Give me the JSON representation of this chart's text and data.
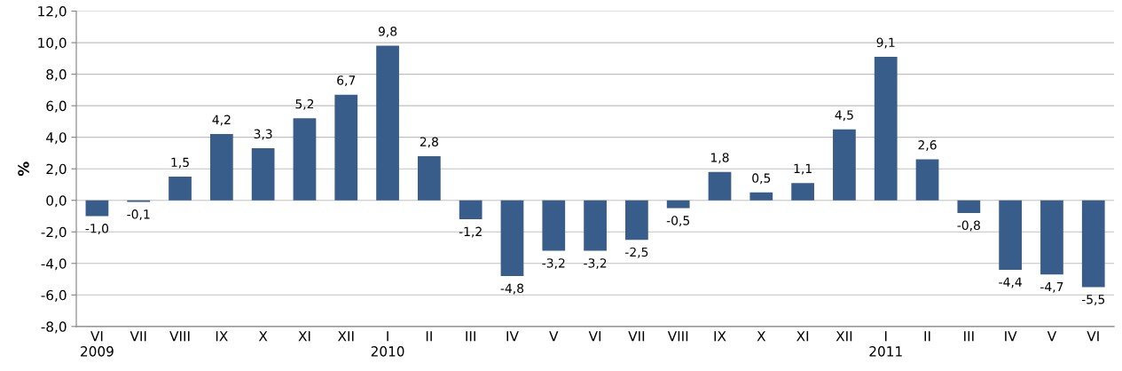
{
  "chart_data": {
    "type": "bar",
    "ylabel": "%",
    "categories": [
      "VI\n2009",
      "VII",
      "VIII",
      "IX",
      "X",
      "XI",
      "XII",
      "I\n2010",
      "II",
      "III",
      "IV",
      "V",
      "VI",
      "VII",
      "VIII",
      "IX",
      "X",
      "XI",
      "XII",
      "I\n2011",
      "II",
      "III",
      "IV",
      "V",
      "VI"
    ],
    "values": [
      -1.0,
      -0.1,
      1.5,
      4.2,
      3.3,
      5.2,
      6.7,
      9.8,
      2.8,
      -1.2,
      -4.8,
      -3.2,
      -3.2,
      -2.5,
      -0.5,
      1.8,
      0.5,
      1.1,
      4.5,
      9.1,
      2.6,
      -0.8,
      -4.4,
      -4.7,
      -5.5
    ],
    "value_labels": [
      "-1,0",
      "-0,1",
      "1,5",
      "4,2",
      "3,3",
      "5,2",
      "6,7",
      "9,8",
      "2,8",
      "-1,2",
      "-4,8",
      "-3,2",
      "-3,2",
      "-2,5",
      "-0,5",
      "1,8",
      "0,5",
      "1,1",
      "4,5",
      "9,1",
      "2,6",
      "-0,8",
      "-4,4",
      "-4,7",
      "-5,5"
    ],
    "color": "#385d8a",
    "ylim": [
      -8,
      12
    ],
    "yticks": [
      {
        "value": -8,
        "label": "-8,0"
      },
      {
        "value": -6,
        "label": "-6,0"
      },
      {
        "value": -4,
        "label": "-4,0"
      },
      {
        "value": -2,
        "label": "-2,0"
      },
      {
        "value": 0,
        "label": "0,0"
      },
      {
        "value": 2,
        "label": "2,0"
      },
      {
        "value": 4,
        "label": "4,0"
      },
      {
        "value": 6,
        "label": "6,0"
      },
      {
        "value": 8,
        "label": "8,0"
      },
      {
        "value": 10,
        "label": "10,0"
      },
      {
        "value": 12,
        "label": "12,0"
      }
    ],
    "grid": "y"
  }
}
